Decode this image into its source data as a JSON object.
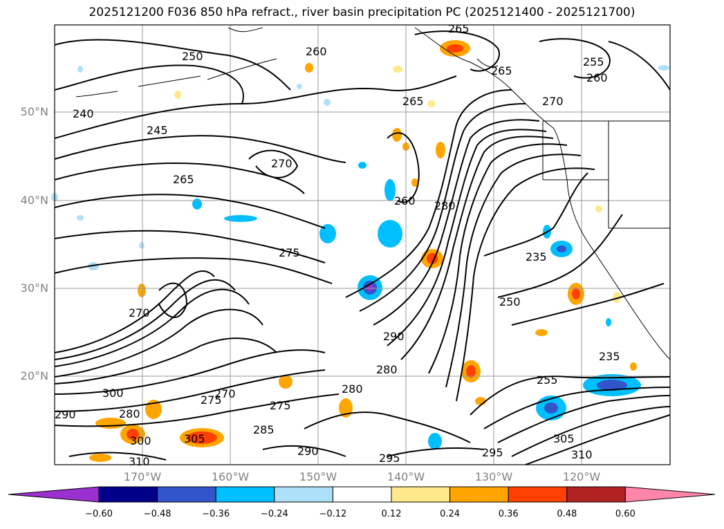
{
  "title": "2025121200 F036 850 hPa refract., river basin precipitation PC (2025121400 - 2025121700)",
  "latitudes": [
    "50°N",
    "40°N",
    "30°N",
    "20°N"
  ],
  "longitudes": [
    "170°W",
    "160°W",
    "150°W",
    "140°W",
    "130°W",
    "120°W"
  ],
  "colorbar": {
    "ticks": [
      "−0.60",
      "−0.48",
      "−0.36",
      "−0.24",
      "−0.12",
      "0.12",
      "0.24",
      "0.36",
      "0.48",
      "0.60"
    ],
    "colors": [
      "#9b30d0",
      "#00008b",
      "#3355cc",
      "#00bfff",
      "#aee0fa",
      "#ffffff",
      "#ffe98a",
      "#ffa500",
      "#ff4000",
      "#b22222",
      "#ff85aa"
    ]
  },
  "contour_labels": [
    "250",
    "240",
    "245",
    "260",
    "265",
    "270",
    "265",
    "255",
    "260",
    "265",
    "270",
    "265",
    "260",
    "280",
    "275",
    "235",
    "250",
    "290",
    "280",
    "270",
    "275",
    "270",
    "300",
    "290",
    "280",
    "305",
    "300",
    "310",
    "285",
    "290",
    "275",
    "280",
    "295",
    "295",
    "305",
    "310",
    "255",
    "235"
  ],
  "colors": {
    "positive": "#ffa500",
    "strong_positive": "#ff4000",
    "negative": "#00bfff",
    "strong_negative": "#3355cc",
    "grid": "#999999"
  }
}
